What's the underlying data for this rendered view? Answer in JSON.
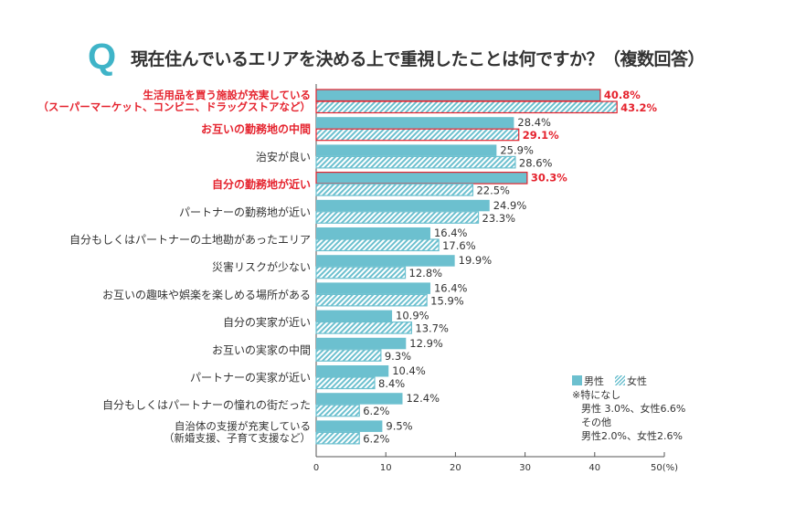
{
  "chart_data": {
    "type": "bar",
    "orientation": "horizontal",
    "title": "現在住んでいるエリアを決める上で重視したことは何ですか？（複数回答）",
    "title_mark": "Q",
    "xunit": "(%)",
    "xlim": [
      0,
      50
    ],
    "xticks": [
      0,
      10,
      20,
      30,
      40,
      50
    ],
    "grid": false,
    "legend_position": "bottom-right",
    "colors": {
      "male": "#6cc0cf",
      "highlight": "#e5232e",
      "text": "#333333",
      "title_mark": "#3fb4c8"
    },
    "series": [
      {
        "name": "男性",
        "style": "solid"
      },
      {
        "name": "女性",
        "style": "hatched"
      }
    ],
    "categories": [
      {
        "label": [
          "生活用品を買う施設が充実している",
          "（スーパーマーケット、コンビニ、ドラッグストアなど）"
        ],
        "male": 40.8,
        "female": 43.2,
        "highlight_label": true,
        "highlight_male": true,
        "highlight_female": true
      },
      {
        "label": [
          "お互いの勤務地の中間"
        ],
        "male": 28.4,
        "female": 29.1,
        "highlight_label": true,
        "highlight_male": false,
        "highlight_female": true
      },
      {
        "label": [
          "治安が良い"
        ],
        "male": 25.9,
        "female": 28.6,
        "highlight_label": false,
        "highlight_male": false,
        "highlight_female": false
      },
      {
        "label": [
          "自分の勤務地が近い"
        ],
        "male": 30.3,
        "female": 22.5,
        "highlight_label": true,
        "highlight_male": true,
        "highlight_female": false
      },
      {
        "label": [
          "パートナーの勤務地が近い"
        ],
        "male": 24.9,
        "female": 23.3,
        "highlight_label": false,
        "highlight_male": false,
        "highlight_female": false
      },
      {
        "label": [
          "自分もしくはパートナーの土地勘があったエリア"
        ],
        "male": 16.4,
        "female": 17.6,
        "highlight_label": false,
        "highlight_male": false,
        "highlight_female": false
      },
      {
        "label": [
          "災害リスクが少ない"
        ],
        "male": 19.9,
        "female": 12.8,
        "highlight_label": false,
        "highlight_male": false,
        "highlight_female": false
      },
      {
        "label": [
          "お互いの趣味や娯楽を楽しめる場所がある"
        ],
        "male": 16.4,
        "female": 15.9,
        "highlight_label": false,
        "highlight_male": false,
        "highlight_female": false
      },
      {
        "label": [
          "自分の実家が近い"
        ],
        "male": 10.9,
        "female": 13.7,
        "highlight_label": false,
        "highlight_male": false,
        "highlight_female": false
      },
      {
        "label": [
          "お互いの実家の中間"
        ],
        "male": 12.9,
        "female": 9.3,
        "highlight_label": false,
        "highlight_male": false,
        "highlight_female": false
      },
      {
        "label": [
          "パートナーの実家が近い"
        ],
        "male": 10.4,
        "female": 8.4,
        "highlight_label": false,
        "highlight_male": false,
        "highlight_female": false
      },
      {
        "label": [
          "自分もしくはパートナーの憧れの街だった"
        ],
        "male": 12.4,
        "female": 6.2,
        "highlight_label": false,
        "highlight_male": false,
        "highlight_female": false
      },
      {
        "label": [
          "自治体の支援が充実している",
          "（新婚支援、子育て支援など）"
        ],
        "male": 9.5,
        "female": 6.2,
        "highlight_label": false,
        "highlight_male": false,
        "highlight_female": false
      }
    ],
    "notes": [
      "※特になし",
      "男性 3.0%、女性6.6%",
      "その他",
      "男性2.0%、女性2.6%"
    ]
  }
}
